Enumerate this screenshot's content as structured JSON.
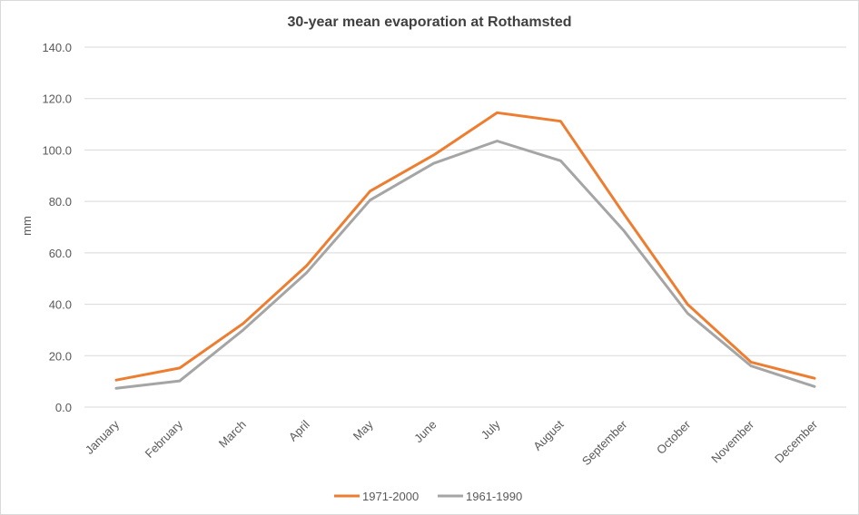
{
  "chart_data": {
    "type": "line",
    "title": "30-year mean evaporation at Rothamsted",
    "xlabel": "",
    "ylabel": "mm",
    "ylim": [
      0,
      140
    ],
    "yticks": [
      "0.0",
      "20.0",
      "40.0",
      "60.0",
      "80.0",
      "100.0",
      "120.0",
      "140.0"
    ],
    "grid": true,
    "legend_position": "bottom",
    "categories": [
      "January",
      "February",
      "March",
      "April",
      "May",
      "June",
      "July",
      "August",
      "September",
      "October",
      "November",
      "December"
    ],
    "series": [
      {
        "name": "1971-2000",
        "color": "#ed7d31",
        "values": [
          10.5,
          15.2,
          32.5,
          55.0,
          84.0,
          98.0,
          114.5,
          111.2,
          75.0,
          40.0,
          17.5,
          11.2
        ]
      },
      {
        "name": "1961-1990",
        "color": "#a5a5a5",
        "values": [
          7.3,
          10.2,
          30.0,
          52.3,
          80.5,
          94.8,
          103.5,
          95.8,
          68.5,
          36.5,
          16.0,
          8.0
        ]
      }
    ]
  }
}
